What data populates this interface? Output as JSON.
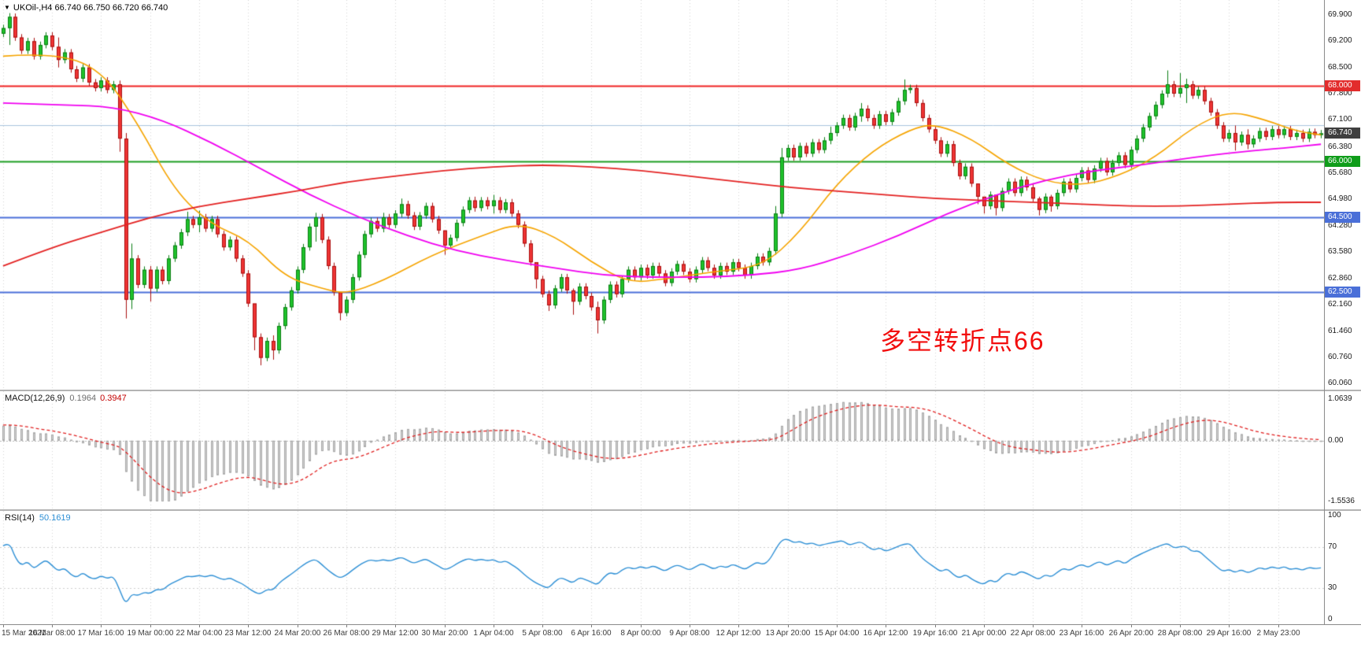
{
  "window": {
    "title": "UKOil-,H4"
  },
  "chart_data": {
    "type": "candlestick",
    "title": "UKOil- H4 chart with MACD and RSI",
    "symbol": "UKOil-",
    "timeframe": "H4",
    "ohlc_label": "UKOil-,H4 66.740 66.750 66.720 66.740",
    "current_price": 66.74,
    "grid": {
      "label_stride": 8
    },
    "price_axis": {
      "top_price": 70.3,
      "bottom_price": 59.9,
      "labels": [
        "69.900",
        "69.200",
        "68.500",
        "67.800",
        "67.100",
        "66.380",
        "65.680",
        "64.980",
        "64.280",
        "63.580",
        "62.860",
        "62.160",
        "61.460",
        "60.760",
        "60.060"
      ],
      "badges": [
        {
          "text": "68.000",
          "price": 68.0,
          "bg": "#e22c2c"
        },
        {
          "text": "66.740",
          "price": 66.74,
          "bg": "#3f3f3f"
        },
        {
          "text": "66.000",
          "price": 66.0,
          "bg": "#0f9d1a"
        },
        {
          "text": "64.500",
          "price": 64.5,
          "bg": "#4a6fd8"
        },
        {
          "text": "62.500",
          "price": 62.5,
          "bg": "#4a6fd8"
        }
      ]
    },
    "levels": [
      {
        "price": 68.0,
        "color": "#ef2020",
        "width": 2
      },
      {
        "price": 66.95,
        "color": "#a8c4de",
        "width": 1
      },
      {
        "price": 66.0,
        "color": "#1d9e20",
        "width": 2
      },
      {
        "price": 64.5,
        "color": "#4a6fd8",
        "width": 2
      },
      {
        "price": 62.5,
        "color": "#4a6fd8",
        "width": 2
      }
    ],
    "time_labels": [
      "15 Mar 2021",
      "16 Mar 08:00",
      "17 Mar 16:00",
      "19 Mar 00:00",
      "22 Mar 04:00",
      "23 Mar 12:00",
      "24 Mar 20:00",
      "26 Mar 08:00",
      "29 Mar 12:00",
      "30 Mar 20:00",
      "1 Apr 04:00",
      "5 Apr 08:00",
      "6 Apr 16:00",
      "8 Apr 00:00",
      "9 Apr 08:00",
      "12 Apr 12:00",
      "13 Apr 20:00",
      "15 Apr 04:00",
      "16 Apr 12:00",
      "19 Apr 16:00",
      "21 Apr 00:00",
      "22 Apr 08:00",
      "23 Apr 16:00",
      "26 Apr 20:00",
      "28 Apr 08:00",
      "29 Apr 16:00",
      "2 May 23:00"
    ],
    "candles": {
      "first_open": 69.4,
      "warmup_closes": [
        67.3,
        67.5,
        67.6,
        67.8,
        67.7,
        67.9,
        68.1,
        68.0,
        68.2,
        68.4,
        68.3,
        68.5,
        68.7,
        68.6,
        68.8,
        69.0,
        68.9,
        69.1,
        69.0,
        69.2,
        69.1,
        69.3,
        69.2,
        69.4,
        69.3,
        69.5,
        69.4,
        69.3,
        69.5,
        69.4
      ],
      "closes": [
        69.55,
        69.85,
        69.3,
        68.95,
        69.2,
        68.8,
        69.1,
        69.35,
        69.05,
        68.7,
        68.9,
        68.45,
        68.2,
        68.5,
        68.1,
        67.95,
        68.15,
        67.9,
        68.05,
        66.6,
        62.3,
        63.4,
        62.7,
        63.1,
        62.6,
        63.1,
        62.8,
        63.4,
        63.75,
        64.1,
        64.45,
        64.3,
        64.5,
        64.2,
        64.45,
        64.05,
        63.7,
        63.9,
        63.4,
        63.0,
        62.2,
        61.3,
        60.75,
        61.2,
        60.95,
        61.6,
        62.1,
        62.55,
        63.1,
        63.7,
        64.25,
        64.5,
        63.9,
        63.2,
        62.5,
        61.95,
        62.3,
        62.9,
        63.5,
        64.05,
        64.4,
        64.2,
        64.5,
        64.3,
        64.6,
        64.85,
        64.55,
        64.25,
        64.55,
        64.8,
        64.45,
        64.15,
        63.75,
        63.95,
        64.35,
        64.7,
        64.95,
        64.75,
        64.95,
        64.8,
        64.95,
        64.7,
        64.9,
        64.6,
        64.3,
        63.8,
        63.3,
        62.85,
        62.45,
        62.15,
        62.6,
        62.9,
        62.55,
        62.25,
        62.65,
        62.4,
        62.1,
        61.75,
        62.3,
        62.7,
        62.45,
        62.85,
        63.1,
        62.9,
        63.15,
        62.95,
        63.2,
        63.0,
        62.75,
        63.05,
        63.25,
        63.05,
        62.85,
        63.1,
        63.35,
        63.15,
        62.95,
        63.2,
        63.05,
        63.3,
        63.15,
        62.95,
        63.2,
        63.45,
        63.3,
        63.6,
        64.6,
        66.1,
        66.35,
        66.1,
        66.4,
        66.2,
        66.5,
        66.3,
        66.55,
        66.75,
        66.95,
        67.15,
        66.9,
        67.2,
        67.4,
        67.15,
        66.95,
        67.25,
        67.05,
        67.3,
        67.6,
        67.9,
        67.95,
        67.55,
        67.15,
        66.85,
        66.55,
        66.2,
        66.45,
        65.95,
        65.6,
        65.85,
        65.4,
        65.05,
        64.8,
        65.1,
        64.75,
        65.2,
        65.45,
        65.15,
        65.5,
        65.3,
        65.0,
        64.7,
        65.05,
        64.8,
        65.15,
        65.45,
        65.25,
        65.55,
        65.75,
        65.5,
        65.8,
        66.0,
        65.7,
        65.95,
        66.15,
        65.9,
        66.3,
        66.6,
        66.9,
        67.2,
        67.5,
        67.8,
        68.05,
        67.8,
        67.95,
        68.05,
        67.75,
        67.9,
        67.6,
        67.3,
        66.95,
        66.6,
        66.75,
        66.5,
        66.7,
        66.45,
        66.6,
        66.8,
        66.65,
        66.85,
        66.7,
        66.85,
        66.65,
        66.75,
        66.6,
        66.78,
        66.7,
        66.74
      ],
      "wick_overrides": {
        "1": [
          69.95,
          69.1
        ],
        "9": [
          69.3,
          68.5
        ],
        "19": [
          68.15,
          66.25
        ],
        "20": [
          66.75,
          61.8
        ],
        "21": [
          63.8,
          62.05
        ],
        "24": [
          63.2,
          62.25
        ],
        "30": [
          64.65,
          64.0
        ],
        "32": [
          64.68,
          64.1
        ],
        "41": [
          61.95,
          60.95
        ],
        "42": [
          61.4,
          60.55
        ],
        "44": [
          61.35,
          60.7
        ],
        "51": [
          64.62,
          63.85
        ],
        "55": [
          62.45,
          61.75
        ],
        "62": [
          64.62,
          64.1
        ],
        "65": [
          65.0,
          64.5
        ],
        "72": [
          64.1,
          63.5
        ],
        "77": [
          65.05,
          64.65
        ],
        "80": [
          65.1,
          64.6
        ],
        "87": [
          63.25,
          62.6
        ],
        "89": [
          62.55,
          62.0
        ],
        "93": [
          62.6,
          61.9
        ],
        "97": [
          62.25,
          61.4
        ],
        "126": [
          64.8,
          63.5
        ],
        "127": [
          66.35,
          64.5
        ],
        "135": [
          66.92,
          66.45
        ],
        "140": [
          67.55,
          67.05
        ],
        "147": [
          68.18,
          67.5
        ],
        "159": [
          65.35,
          64.85
        ],
        "160": [
          65.05,
          64.6
        ],
        "162": [
          65.05,
          64.55
        ],
        "169": [
          65.05,
          64.55
        ],
        "171": [
          65.1,
          64.65
        ],
        "190": [
          68.42,
          67.7
        ],
        "192": [
          68.35,
          67.7
        ],
        "193": [
          68.2,
          67.55
        ],
        "201": [
          66.95,
          66.28
        ],
        "203": [
          66.85,
          66.32
        ]
      }
    },
    "ma_lines": [
      {
        "name": "ma-fast-orange",
        "color": "#f5a400",
        "width": 1.6,
        "points": [
          [
            0,
            68.8
          ],
          [
            8,
            68.9
          ],
          [
            16,
            68.45
          ],
          [
            22,
            67.0
          ],
          [
            28,
            65.2
          ],
          [
            34,
            64.3
          ],
          [
            40,
            63.9
          ],
          [
            46,
            62.9
          ],
          [
            52,
            62.6
          ],
          [
            56,
            62.45
          ],
          [
            62,
            62.8
          ],
          [
            70,
            63.5
          ],
          [
            78,
            64.0
          ],
          [
            84,
            64.35
          ],
          [
            90,
            64.0
          ],
          [
            96,
            63.3
          ],
          [
            102,
            62.75
          ],
          [
            108,
            62.85
          ],
          [
            116,
            63.05
          ],
          [
            124,
            63.2
          ],
          [
            130,
            64.1
          ],
          [
            136,
            65.4
          ],
          [
            142,
            66.3
          ],
          [
            148,
            66.85
          ],
          [
            152,
            67.0
          ],
          [
            158,
            66.6
          ],
          [
            164,
            65.9
          ],
          [
            170,
            65.45
          ],
          [
            176,
            65.35
          ],
          [
            182,
            65.6
          ],
          [
            188,
            66.1
          ],
          [
            194,
            66.9
          ],
          [
            200,
            67.35
          ],
          [
            206,
            67.1
          ],
          [
            211,
            66.8
          ],
          [
            215,
            66.7
          ]
        ]
      },
      {
        "name": "ma-slow-magenta",
        "color": "#f000f0",
        "width": 1.8,
        "points": [
          [
            0,
            67.55
          ],
          [
            10,
            67.5
          ],
          [
            18,
            67.45
          ],
          [
            26,
            67.1
          ],
          [
            34,
            66.5
          ],
          [
            42,
            65.8
          ],
          [
            50,
            65.1
          ],
          [
            58,
            64.5
          ],
          [
            66,
            64.0
          ],
          [
            74,
            63.6
          ],
          [
            82,
            63.35
          ],
          [
            90,
            63.15
          ],
          [
            98,
            62.95
          ],
          [
            106,
            62.9
          ],
          [
            114,
            62.9
          ],
          [
            122,
            62.95
          ],
          [
            130,
            63.1
          ],
          [
            138,
            63.5
          ],
          [
            146,
            64.0
          ],
          [
            154,
            64.6
          ],
          [
            162,
            65.1
          ],
          [
            170,
            65.5
          ],
          [
            178,
            65.75
          ],
          [
            186,
            65.9
          ],
          [
            194,
            66.1
          ],
          [
            202,
            66.25
          ],
          [
            209,
            66.35
          ],
          [
            215,
            66.45
          ]
        ]
      },
      {
        "name": "ma-slowest-red",
        "color": "#e32222",
        "width": 1.8,
        "points": [
          [
            0,
            63.2
          ],
          [
            8,
            63.7
          ],
          [
            16,
            64.1
          ],
          [
            24,
            64.5
          ],
          [
            32,
            64.8
          ],
          [
            40,
            65.0
          ],
          [
            48,
            65.2
          ],
          [
            56,
            65.45
          ],
          [
            64,
            65.6
          ],
          [
            72,
            65.75
          ],
          [
            80,
            65.85
          ],
          [
            88,
            65.9
          ],
          [
            96,
            65.85
          ],
          [
            104,
            65.75
          ],
          [
            112,
            65.6
          ],
          [
            120,
            65.45
          ],
          [
            128,
            65.3
          ],
          [
            136,
            65.2
          ],
          [
            144,
            65.1
          ],
          [
            152,
            65.0
          ],
          [
            160,
            64.95
          ],
          [
            168,
            64.9
          ],
          [
            176,
            64.85
          ],
          [
            184,
            64.8
          ],
          [
            192,
            64.8
          ],
          [
            200,
            64.85
          ],
          [
            208,
            64.9
          ],
          [
            215,
            64.9
          ]
        ]
      }
    ],
    "macd": {
      "label": "MACD(12,26,9)",
      "value_main": "0.1964",
      "value_signal": "0.3947",
      "params": [
        12,
        26,
        9
      ],
      "axis_max": 1.0639,
      "axis_min": -1.5536,
      "axis_max_text": "1.0639",
      "axis_zero_text": "0.00",
      "axis_min_text": "-1.5536"
    },
    "rsi": {
      "label": "RSI(14)",
      "value_text": "50.1619",
      "period": 14,
      "axis": [
        100,
        70,
        30,
        0
      ],
      "levels": [
        70,
        30
      ]
    },
    "annotation": {
      "text": "多空转折点66",
      "color": "#f20d0d"
    }
  }
}
